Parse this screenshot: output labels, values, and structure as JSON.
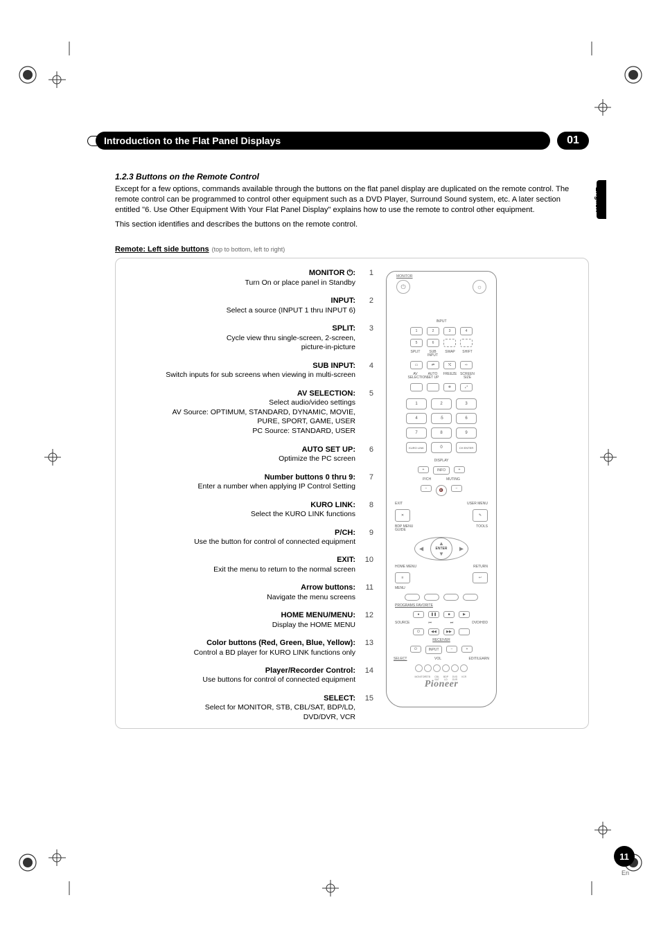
{
  "chapter": {
    "title": "Introduction to the Flat Panel Displays",
    "number": "01"
  },
  "language_tab": "English",
  "subsection": {
    "number_title": "1.2.3   Buttons on the Remote Control",
    "para1": "Except for a few options, commands available through the buttons on the flat panel display are duplicated on the remote control. The remote control can be programmed to control other equipment such as a DVD Player, Surround Sound system, etc. A later section entitled \"6. Use Other Equipment With Your Flat Panel Display\" explains how to use the remote to control other equipment.",
    "para2": "This section identifies and describes the buttons on the remote control."
  },
  "left_heading": "Remote: Left side buttons",
  "left_heading_note": " (top to bottom, left to right)",
  "items": [
    {
      "n": "1",
      "title": "MONITOR ⏻:",
      "lines": [
        "Turn On or place panel in Standby"
      ]
    },
    {
      "n": "2",
      "title": "INPUT:",
      "lines": [
        "Select a source (INPUT 1 thru INPUT 6)"
      ]
    },
    {
      "n": "3",
      "title": "SPLIT:",
      "lines": [
        "Cycle view thru single-screen, 2-screen,",
        "picture-in-picture"
      ]
    },
    {
      "n": "4",
      "title": "SUB INPUT:",
      "lines": [
        "Switch inputs for sub screens when viewing in multi-screen"
      ]
    },
    {
      "n": "5",
      "title": "AV SELECTION:",
      "lines": [
        "Select audio/video settings",
        "AV Source: OPTIMUM, STANDARD, DYNAMIC, MOVIE,",
        "PURE, SPORT, GAME, USER",
        "PC Source: STANDARD, USER"
      ]
    },
    {
      "n": "6",
      "title": "AUTO SET UP:",
      "lines": [
        "Optimize the PC screen"
      ]
    },
    {
      "n": "7",
      "title": "Number buttons 0 thru 9:",
      "lines": [
        "Enter a number when applying IP Control Setting"
      ]
    },
    {
      "n": "8",
      "title": "KURO LINK:",
      "lines": [
        "Select the KURO LINK functions"
      ]
    },
    {
      "n": "9",
      "title": "P/CH:",
      "lines": [
        "Use the button for control of connected equipment"
      ]
    },
    {
      "n": "10",
      "title": "EXIT:",
      "lines": [
        "Exit the menu to return to the normal screen"
      ]
    },
    {
      "n": "11",
      "title": "Arrow buttons:",
      "lines": [
        "Navigate the menu screens"
      ]
    },
    {
      "n": "12",
      "title": "HOME MENU/MENU:",
      "lines": [
        "Display the HOME MENU"
      ]
    },
    {
      "n": "13",
      "title": "Color buttons (Red, Green, Blue, Yellow):",
      "lines": [
        "Control a BD player for KURO LINK functions only"
      ]
    },
    {
      "n": "14",
      "title": "Player/Recorder Control:",
      "lines": [
        "Use buttons for control of connected equipment"
      ]
    },
    {
      "n": "15",
      "title": "SELECT:",
      "lines": [
        "Select for MONITOR, STB, CBL/SAT, BDP/LD,",
        "DVD/DVR, VCR"
      ]
    }
  ],
  "remote": {
    "monitor_label": "MONITOR",
    "input_label": "INPUT",
    "input_nums": [
      "1",
      "2",
      "3",
      "4",
      "5",
      "6"
    ],
    "row_labels1": [
      "SPLIT",
      "SUB INPUT",
      "SWAP",
      "SHIFT"
    ],
    "row_labels2": [
      "AV SELECTION",
      "AUTO SET UP",
      "FREEZE",
      "SCREEN SIZE"
    ],
    "numpad": [
      "1",
      "2",
      "3",
      "4",
      "·5",
      "6",
      "7",
      "8",
      "9"
    ],
    "kuro": "KURO LINK",
    "zero": "0",
    "ch_enter": "CH ENTER",
    "display": "DISPLAY",
    "info": "INFO",
    "pch": "P/CH",
    "muting": "MUTING",
    "exit": "EXIT",
    "usermenu": "USER MENU",
    "bdpmenu": "BDP MENU",
    "guide": "GUIDE",
    "tools": "TOOLS",
    "enter": "ENTER",
    "home_menu": "HOME MENU",
    "return": "RETURN",
    "menu": "MENU",
    "prog_fav": "PROGRAMS  FAVORITE",
    "source": "SOURCE",
    "dvd_hdd": "DVD/HDD",
    "receiver": "RECEIVER",
    "input_btn": "INPUT",
    "vol": "VOL",
    "select": "SELECT",
    "sel_labels": [
      "MONITOR",
      "STB",
      "CBL SAT",
      "BDP LD",
      "DVD DVR",
      "VCR"
    ],
    "edit_learn": "EDIT/LEARN",
    "brand": "Pioneer"
  },
  "page": {
    "number": "11",
    "lang_short": "En"
  }
}
